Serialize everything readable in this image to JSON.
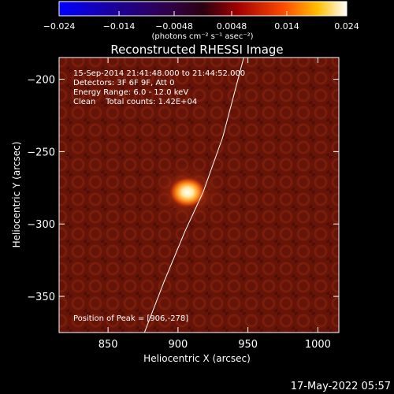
{
  "chart_data": {
    "type": "heatmap",
    "title": "Reconstructed RHESSI Image",
    "xlabel": "Heliocentric X (arcsec)",
    "ylabel": "Heliocentric Y (arcsec)",
    "xlim": [
      815,
      1015
    ],
    "ylim": [
      -375,
      -185
    ],
    "x_ticks": [
      850,
      900,
      950,
      1000
    ],
    "y_ticks": [
      -200,
      -250,
      -300,
      -350
    ],
    "x_tick_labels": [
      "850",
      "900",
      "950",
      "1000"
    ],
    "y_tick_labels": [
      "−200",
      "−250",
      "−300",
      "−350"
    ],
    "colorbar": {
      "range": [
        -0.024,
        0.024
      ],
      "ticks": [
        -0.024,
        -0.014,
        -0.0048,
        0.0048,
        0.014,
        0.024
      ],
      "tick_labels": [
        "−0.024",
        "−0.014",
        "−0.0048",
        "0.0048",
        "0.014",
        "0.024"
      ],
      "units": "(photons cm⁻² s⁻¹ asec⁻²)"
    },
    "annotations": [
      "15-Sep-2014 21:41:48.000 to 21:44:52.000",
      "Detectors: 3F 6F 9F, Att 0",
      "Energy Range: 6.0 - 12.0 keV",
      "Clean    Total counts: 1.42E+04"
    ],
    "peak_label": "Position of Peak = [906,-278]",
    "peak": {
      "x": 906,
      "y": -278
    },
    "limb_line": [
      [
        876,
        -375
      ],
      [
        890,
        -340
      ],
      [
        905,
        -305
      ],
      [
        918,
        -278
      ],
      [
        932,
        -240
      ],
      [
        947,
        -185
      ]
    ]
  },
  "footer": {
    "timestamp": "17-May-2022 05:57"
  }
}
